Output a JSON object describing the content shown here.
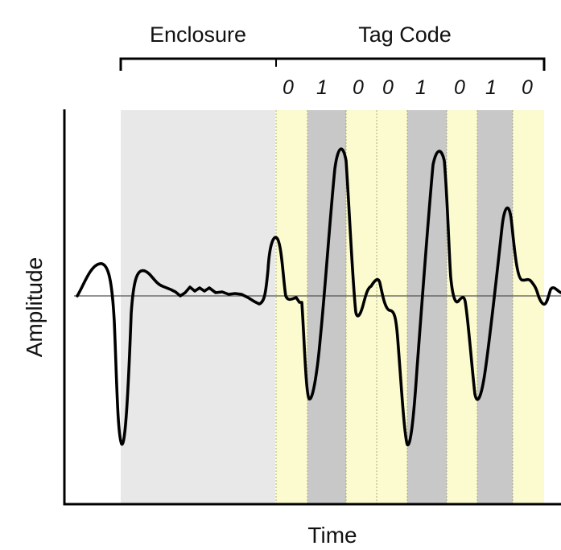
{
  "labels": {
    "enclosure": "Enclosure",
    "tag_code": "Tag Code",
    "x_axis": "Time",
    "y_axis": "Amplitude"
  },
  "bits": [
    "0",
    "1",
    "0",
    "0",
    "1",
    "0",
    "1",
    "0"
  ],
  "colors": {
    "enclosure_region": "#e8e8e8",
    "bit_zero": "#fbfbcf",
    "bit_one": "#c8c8c8",
    "signal": "#000000",
    "baseline": "#555555",
    "axes": "#000000"
  }
}
